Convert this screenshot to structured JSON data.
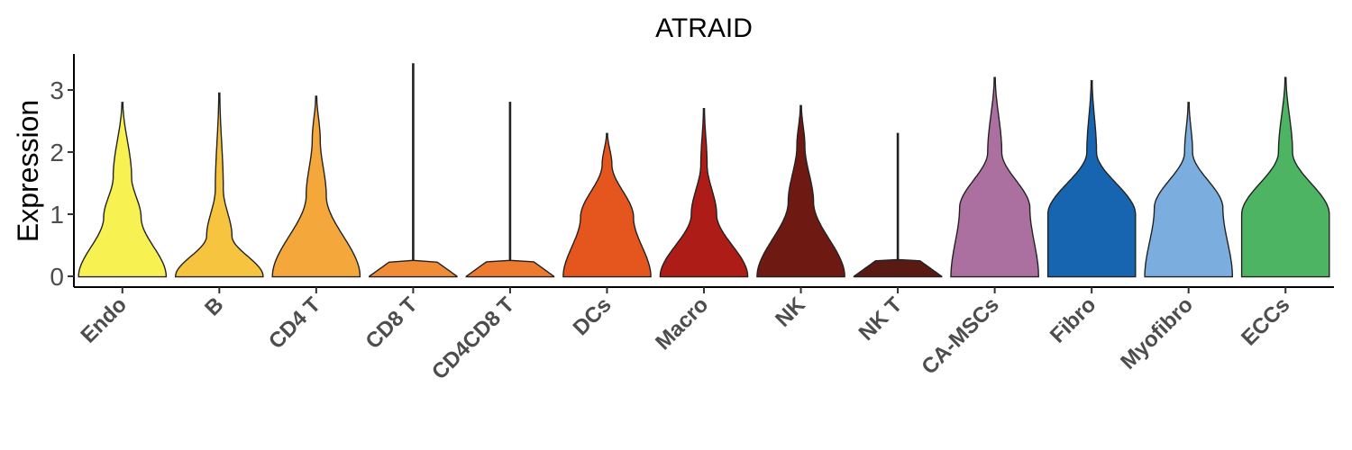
{
  "chart_data": {
    "type": "violin",
    "title": "ATRAID",
    "ylabel": "Expression",
    "xlabel": "",
    "ylim": [
      -0.15,
      3.6
    ],
    "yticks": [
      0,
      1,
      2,
      3
    ],
    "legend": "none",
    "grid": false,
    "categories": [
      {
        "name": "Endo",
        "color": "#F7F152",
        "max": 2.8,
        "peaks": [
          [
            0,
            1.0
          ],
          [
            0.95,
            0.42
          ],
          [
            1.6,
            0.2
          ],
          [
            2.8,
            0
          ]
        ]
      },
      {
        "name": "B",
        "color": "#F7C43F",
        "max": 2.95,
        "peaks": [
          [
            0,
            1.0
          ],
          [
            0.65,
            0.28
          ],
          [
            1.4,
            0.08
          ],
          [
            2.95,
            0
          ]
        ]
      },
      {
        "name": "CD4 T",
        "color": "#F4A73A",
        "max": 2.9,
        "peaks": [
          [
            0,
            1.0
          ],
          [
            1.3,
            0.22
          ],
          [
            2.2,
            0.08
          ],
          [
            2.9,
            0
          ]
        ]
      },
      {
        "name": "CD8 T",
        "color": "#F08C35",
        "max": 3.42,
        "peaks": [
          [
            0,
            1.0
          ],
          [
            0.05,
            0.0
          ]
        ]
      },
      {
        "name": "CD4CD8 T",
        "color": "#EE7A30",
        "max": 2.8,
        "peaks": [
          [
            0,
            1.0
          ],
          [
            0.05,
            0.0
          ]
        ]
      },
      {
        "name": "DCs",
        "color": "#E4561D",
        "max": 2.3,
        "peaks": [
          [
            0,
            1.0
          ],
          [
            0.95,
            0.6
          ],
          [
            1.8,
            0.1
          ],
          [
            2.3,
            0
          ]
        ]
      },
      {
        "name": "Macro",
        "color": "#AD1C16",
        "max": 2.7,
        "peaks": [
          [
            0,
            1.0
          ],
          [
            1.0,
            0.28
          ],
          [
            1.8,
            0.06
          ],
          [
            2.7,
            0
          ]
        ]
      },
      {
        "name": "NK",
        "color": "#6E1A12",
        "max": 2.75,
        "peaks": [
          [
            0,
            1.0
          ],
          [
            1.2,
            0.28
          ],
          [
            2.1,
            0.08
          ],
          [
            2.75,
            0
          ]
        ]
      },
      {
        "name": "NK T",
        "color": "#5A1A14",
        "max": 2.3,
        "peaks": [
          [
            0,
            1.0
          ],
          [
            0.05,
            0.0
          ]
        ]
      },
      {
        "name": "CA-MSCs",
        "color": "#AB709F",
        "max": 3.2,
        "peaks": [
          [
            0,
            1.0
          ],
          [
            1.1,
            0.8
          ],
          [
            2.0,
            0.15
          ],
          [
            3.2,
            0
          ]
        ]
      },
      {
        "name": "Fibro",
        "color": "#1764B0",
        "max": 3.15,
        "peaks": [
          [
            0,
            1.0
          ],
          [
            1.0,
            1.0
          ],
          [
            2.0,
            0.1
          ],
          [
            3.15,
            0
          ]
        ]
      },
      {
        "name": "Myofibro",
        "color": "#7BAEDE",
        "max": 2.8,
        "peaks": [
          [
            0,
            1.0
          ],
          [
            1.1,
            0.78
          ],
          [
            2.0,
            0.08
          ],
          [
            2.8,
            0
          ]
        ]
      },
      {
        "name": "ECCs",
        "color": "#4DB463",
        "max": 3.2,
        "peaks": [
          [
            0,
            1.0
          ],
          [
            1.0,
            1.0
          ],
          [
            2.0,
            0.15
          ],
          [
            3.2,
            0
          ]
        ]
      }
    ]
  }
}
